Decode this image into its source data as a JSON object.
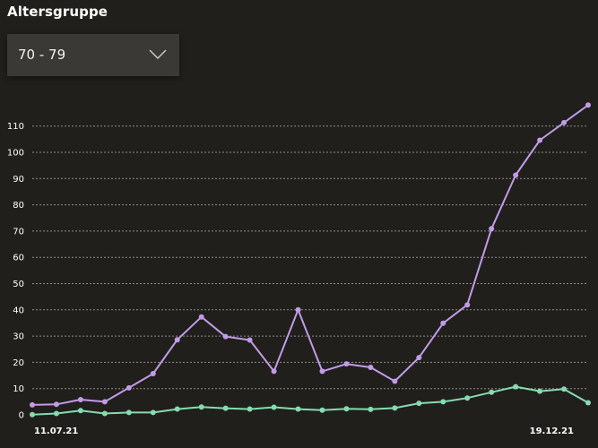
{
  "header": {
    "title": "Altersgruppe"
  },
  "filter": {
    "selected": "70 - 79"
  },
  "colors": {
    "background": "#201f1c",
    "grid": "#bdbdbd",
    "series_purple": "#c29be6",
    "series_green": "#86dbb0"
  },
  "chart_data": {
    "type": "line",
    "x_start_label": "11.07.21",
    "x_end_label": "19.12.21",
    "yticks": [
      0,
      10,
      20,
      30,
      40,
      50,
      60,
      70,
      80,
      90,
      100,
      110
    ],
    "ylim": [
      0,
      120
    ],
    "grid": true,
    "series": [
      {
        "color": "#c29be6",
        "values": [
          3.8,
          4.0,
          5.8,
          5.0,
          10.3,
          15.7,
          28.6,
          37.3,
          29.8,
          28.5,
          16.6,
          40.0,
          16.6,
          19.4,
          18.1,
          12.8,
          21.8,
          34.9,
          41.9,
          70.9,
          91.3,
          104.6,
          111.3,
          118.0
        ]
      },
      {
        "color": "#86dbb0",
        "values": [
          0.1,
          0.5,
          1.6,
          0.5,
          0.9,
          0.9,
          2.2,
          3.0,
          2.5,
          2.2,
          2.9,
          2.2,
          1.8,
          2.3,
          2.1,
          2.6,
          4.4,
          5.0,
          6.4,
          8.6,
          10.7,
          9.0,
          9.8,
          4.6
        ]
      }
    ]
  }
}
